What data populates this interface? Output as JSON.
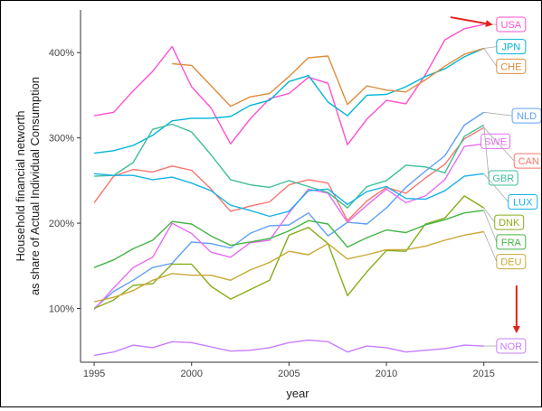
{
  "chart_data": {
    "type": "line",
    "xlabel": "year",
    "ylabel_line1": "Household financial networth",
    "ylabel_line2": "as share of Actual Individual Consumption",
    "x_ticks": [
      1995,
      2000,
      2005,
      2010,
      2015
    ],
    "y_ticks": [
      100,
      200,
      300,
      400
    ],
    "y_tick_labels": [
      "100%",
      "200%",
      "300%",
      "400%"
    ],
    "xlim": [
      1994.3,
      2017.8
    ],
    "ylim": [
      37,
      450
    ],
    "grid": false,
    "legend": "direct labels at right",
    "annotations": [
      "red arrow pointing to USA",
      "red arrow pointing to NOR"
    ],
    "series": [
      {
        "name": "USA",
        "color": "#ff4fd0",
        "x": [
          1995,
          1996,
          1997,
          1998,
          1999,
          2000,
          2001,
          2002,
          2003,
          2004,
          2005,
          2006,
          2007,
          2008,
          2009,
          2010,
          2011,
          2012,
          2013,
          2014,
          2015
        ],
        "y": [
          326,
          330,
          355,
          378,
          407,
          360,
          335,
          293,
          322,
          346,
          352,
          371,
          364,
          292,
          322,
          344,
          340,
          374,
          415,
          428,
          433
        ]
      },
      {
        "name": "JPN",
        "color": "#00b6d6",
        "x": [
          1995,
          1996,
          1997,
          1998,
          1999,
          2000,
          2001,
          2002,
          2003,
          2004,
          2005,
          2006,
          2007,
          2008,
          2009,
          2010,
          2011,
          2012,
          2013,
          2014,
          2015
        ],
        "y": [
          282,
          285,
          291,
          303,
          320,
          323,
          323,
          325,
          338,
          344,
          366,
          373,
          342,
          326,
          350,
          351,
          360,
          372,
          381,
          395,
          405
        ]
      },
      {
        "name": "CHE",
        "color": "#e08b3b",
        "x": [
          1999,
          2000,
          2001,
          2002,
          2003,
          2004,
          2005,
          2006,
          2007,
          2008,
          2009,
          2010,
          2011,
          2012,
          2013,
          2014,
          2015
        ],
        "y": [
          387,
          385,
          361,
          337,
          348,
          352,
          372,
          394,
          396,
          339,
          361,
          356,
          354,
          368,
          384,
          398,
          405
        ]
      },
      {
        "name": "NLD",
        "color": "#5f9ff5",
        "x": [
          1995,
          1996,
          1997,
          1998,
          1999,
          2000,
          2001,
          2002,
          2003,
          2004,
          2005,
          2006,
          2007,
          2008,
          2009,
          2010,
          2011,
          2012,
          2013,
          2014,
          2015
        ],
        "y": [
          100,
          120,
          133,
          148,
          153,
          178,
          176,
          171,
          188,
          197,
          198,
          212,
          185,
          201,
          199,
          218,
          242,
          261,
          279,
          315,
          330
        ]
      },
      {
        "name": "SWE",
        "color": "#e76bf3",
        "x": [
          1995,
          1996,
          1997,
          1998,
          1999,
          2000,
          2001,
          2002,
          2003,
          2004,
          2005,
          2006,
          2007,
          2008,
          2009,
          2010,
          2011,
          2012,
          2013,
          2014,
          2015
        ],
        "y": [
          99,
          124,
          148,
          160,
          200,
          188,
          166,
          160,
          177,
          180,
          212,
          240,
          235,
          201,
          221,
          240,
          224,
          232,
          251,
          290,
          293
        ]
      },
      {
        "name": "CAN",
        "color": "#f8766d",
        "x": [
          1995,
          1996,
          1997,
          1998,
          1999,
          2000,
          2001,
          2002,
          2003,
          2004,
          2005,
          2006,
          2007,
          2008,
          2009,
          2010,
          2011,
          2012,
          2013,
          2014,
          2015
        ],
        "y": [
          224,
          255,
          263,
          260,
          267,
          262,
          240,
          214,
          220,
          225,
          245,
          251,
          247,
          203,
          226,
          242,
          235,
          253,
          269,
          299,
          312
        ]
      },
      {
        "name": "GBR",
        "color": "#3cbf9a",
        "x": [
          1995,
          1996,
          1997,
          1998,
          1999,
          2000,
          2001,
          2002,
          2003,
          2004,
          2005,
          2006,
          2007,
          2008,
          2009,
          2010,
          2011,
          2012,
          2013,
          2014,
          2015
        ],
        "y": [
          255,
          256,
          271,
          310,
          316,
          307,
          280,
          251,
          245,
          242,
          250,
          243,
          236,
          218,
          243,
          250,
          268,
          266,
          259,
          302,
          315
        ]
      },
      {
        "name": "LUX",
        "color": "#19b2e6",
        "x": [
          1995,
          1996,
          1997,
          1998,
          1999,
          2000,
          2001,
          2002,
          2003,
          2004,
          2005,
          2006,
          2007,
          2008,
          2009,
          2010,
          2011,
          2012,
          2013,
          2014,
          2015
        ],
        "y": [
          258,
          256,
          256,
          251,
          254,
          247,
          238,
          221,
          215,
          208,
          214,
          238,
          240,
          222,
          237,
          243,
          229,
          228,
          238,
          255,
          258
        ]
      },
      {
        "name": "DNK",
        "color": "#86ad1a",
        "x": [
          1995,
          1996,
          1997,
          1998,
          1999,
          2000,
          2001,
          2002,
          2003,
          2004,
          2005,
          2006,
          2007,
          2008,
          2009,
          2010,
          2011,
          2012,
          2013,
          2014,
          2015
        ],
        "y": [
          100,
          110,
          127,
          129,
          152,
          152,
          126,
          111,
          122,
          133,
          186,
          195,
          176,
          115,
          143,
          168,
          167,
          199,
          206,
          232,
          218
        ]
      },
      {
        "name": "FRA",
        "color": "#43b543",
        "x": [
          1995,
          1996,
          1997,
          1998,
          1999,
          2000,
          2001,
          2002,
          2003,
          2004,
          2005,
          2006,
          2007,
          2008,
          2009,
          2010,
          2011,
          2012,
          2013,
          2014,
          2015
        ],
        "y": [
          148,
          157,
          170,
          180,
          202,
          199,
          185,
          174,
          178,
          182,
          191,
          203,
          199,
          172,
          183,
          192,
          189,
          198,
          204,
          212,
          215
        ]
      },
      {
        "name": "DEU",
        "color": "#c9a836",
        "x": [
          1995,
          1996,
          1997,
          1998,
          1999,
          2000,
          2001,
          2002,
          2003,
          2004,
          2005,
          2006,
          2007,
          2008,
          2009,
          2010,
          2011,
          2012,
          2013,
          2014,
          2015
        ],
        "y": [
          108,
          113,
          121,
          133,
          141,
          139,
          139,
          133,
          145,
          154,
          167,
          163,
          176,
          158,
          163,
          169,
          169,
          173,
          180,
          186,
          190
        ]
      },
      {
        "name": "NOR",
        "color": "#c77cff",
        "x": [
          1995,
          1996,
          1997,
          1998,
          1999,
          2000,
          2001,
          2002,
          2003,
          2004,
          2005,
          2006,
          2007,
          2008,
          2009,
          2010,
          2011,
          2012,
          2013,
          2014,
          2015
        ],
        "y": [
          45,
          49,
          57,
          54,
          61,
          60,
          55,
          50,
          51,
          54,
          60,
          63,
          61,
          49,
          56,
          54,
          49,
          51,
          53,
          57,
          56
        ]
      }
    ],
    "labels": [
      {
        "text": "USA",
        "x": 2016.4,
        "y": 433
      },
      {
        "text": "JPN",
        "x": 2016.4,
        "y": 407
      },
      {
        "text": "CHE",
        "x": 2016.4,
        "y": 384
      },
      {
        "text": "NLD",
        "x": 2017.2,
        "y": 326
      },
      {
        "text": "SWE",
        "x": 2015.6,
        "y": 296
      },
      {
        "text": "CAN",
        "x": 2017.3,
        "y": 273
      },
      {
        "text": "GBR",
        "x": 2016.0,
        "y": 253
      },
      {
        "text": "LUX",
        "x": 2017.0,
        "y": 225
      },
      {
        "text": "DNK",
        "x": 2016.3,
        "y": 201
      },
      {
        "text": "FRA",
        "x": 2016.4,
        "y": 178
      },
      {
        "text": "DEU",
        "x": 2016.4,
        "y": 155
      },
      {
        "text": "NOR",
        "x": 2016.4,
        "y": 56
      }
    ]
  }
}
